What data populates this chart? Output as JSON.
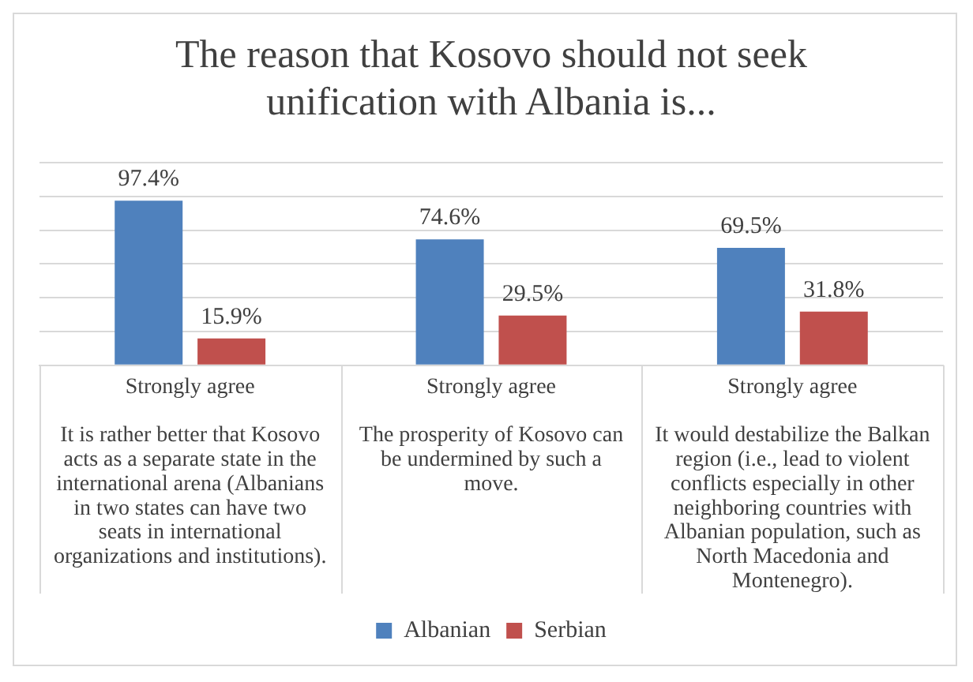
{
  "chart_data": {
    "type": "bar",
    "title": "The reason that Kosovo should not seek unification with Albania is...",
    "categories": [
      "Strongly agree\nIt is rather better that Kosovo acts as a separate state in the international arena (Albanians in two states can have two seats in international organizations and institutions).",
      "Strongly agree\nThe prosperity of Kosovo can be undermined by such a move.",
      "Strongly agree\nIt would destabilize the Balkan region (i.e., lead to violent conflicts especially in other neighboring countries with Albanian population, such as North Macedonia and Montenegro)."
    ],
    "series": [
      {
        "name": "Albanian",
        "color": "#4f81bd",
        "values": [
          97.4,
          74.6,
          69.5
        ],
        "value_labels": [
          "97.4%",
          "74.6%",
          "69.5%"
        ]
      },
      {
        "name": "Serbian",
        "color": "#c0504d",
        "values": [
          15.9,
          29.5,
          31.8
        ],
        "value_labels": [
          "15.9%",
          "29.5%",
          "31.8%"
        ]
      }
    ],
    "tick_labels": "x",
    "grid": "y",
    "legend": "bottom"
  }
}
